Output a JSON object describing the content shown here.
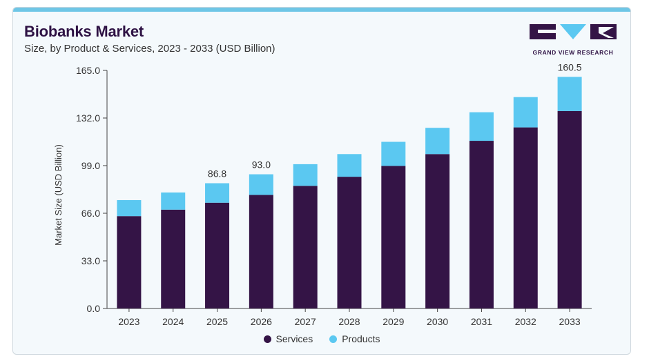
{
  "header": {
    "title": "Biobanks Market",
    "subtitle": "Size, by Product & Services, 2023 - 2033 (USD Billion)"
  },
  "logo": {
    "text": "GRAND VIEW RESEARCH"
  },
  "colors": {
    "services": "#341446",
    "products": "#5bc8f1",
    "accent": "#6ec6e6"
  },
  "chart_data": {
    "type": "bar",
    "stacked": true,
    "title": "Biobanks Market",
    "subtitle": "Size, by Product & Services, 2023 - 2033 (USD Billion)",
    "xlabel": "",
    "ylabel": "Market Size (USD Billion)",
    "ylim": [
      0,
      165
    ],
    "yticks": [
      "0.0",
      "33.0",
      "66.0",
      "99.0",
      "132.0",
      "165.0"
    ],
    "categories": [
      "2023",
      "2024",
      "2025",
      "2026",
      "2027",
      "2028",
      "2029",
      "2030",
      "2031",
      "2032",
      "2033"
    ],
    "series": [
      {
        "name": "Services",
        "values": [
          64.0,
          68.5,
          73.3,
          78.7,
          85.0,
          91.3,
          98.8,
          107.0,
          116.2,
          125.5,
          136.8
        ]
      },
      {
        "name": "Products",
        "values": [
          11.1,
          11.9,
          13.5,
          14.3,
          15.0,
          15.7,
          16.7,
          18.2,
          19.8,
          21.0,
          23.7
        ]
      }
    ],
    "data_labels": [
      {
        "category": "2025",
        "text": "86.8"
      },
      {
        "category": "2026",
        "text": "93.0"
      },
      {
        "category": "2033",
        "text": "160.5"
      }
    ],
    "legend": {
      "position": "bottom",
      "items": [
        "Services",
        "Products"
      ]
    },
    "grid": false
  }
}
